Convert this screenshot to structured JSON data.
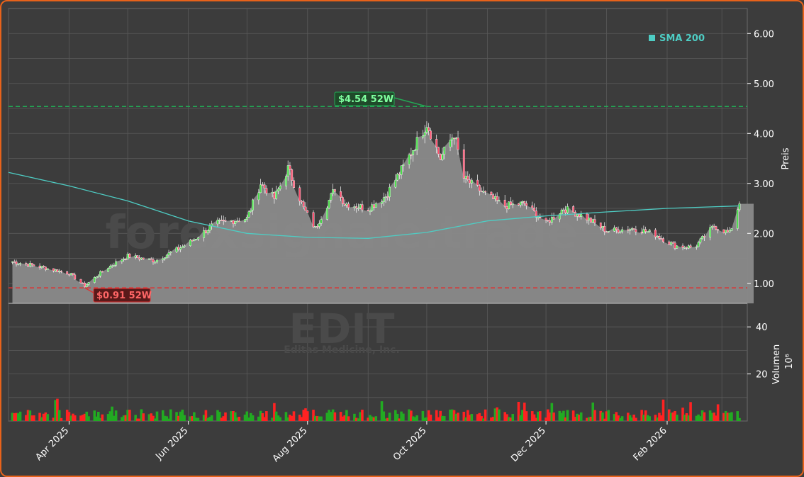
{
  "colors": {
    "background": "#3c3c3c",
    "border": "#e8621a",
    "grid": "#5a5a5a",
    "area": "#8a8a8a",
    "sma": "#4ecdc4",
    "up": "#22aa22",
    "down": "#ff2222",
    "high_line": "#22aa55",
    "low_line": "#dd3333"
  },
  "watermark": {
    "site": "forexsignale.trade",
    "ticker": "EDIT",
    "company": "Editas Medicine, Inc."
  },
  "legend": {
    "label": "SMA 200",
    "color": "#4ecdc4",
    "position": "top-right"
  },
  "annotations": {
    "high": {
      "label": "$4.54 52W",
      "value": 4.54,
      "date": "2025-10-01"
    },
    "low": {
      "label": "$0.91 52W",
      "value": 0.91,
      "date": "2025-04-09"
    }
  },
  "chart_data": [
    {
      "type": "line",
      "subtype": "candlestick-with-area",
      "ylabel": "Preis",
      "ylim": [
        0.6,
        6.5
      ],
      "y_ticks": [
        "1.00",
        "2.00",
        "3.00",
        "4.00",
        "5.00",
        "6.00"
      ],
      "x_ticks": [
        "Apr 2025",
        "Jun 2025",
        "Aug 2025",
        "Oct 2025",
        "Dec 2025",
        "Feb 2026"
      ],
      "grid": true,
      "price_series": {
        "name": "Close",
        "dates": [
          "2025-03-01",
          "2025-03-15",
          "2025-04-01",
          "2025-04-09",
          "2025-04-20",
          "2025-05-01",
          "2025-05-15",
          "2025-06-01",
          "2025-06-15",
          "2025-07-01",
          "2025-07-08",
          "2025-07-15",
          "2025-07-22",
          "2025-07-30",
          "2025-08-05",
          "2025-08-15",
          "2025-08-20",
          "2025-09-01",
          "2025-09-10",
          "2025-09-20",
          "2025-10-01",
          "2025-10-08",
          "2025-10-15",
          "2025-10-20",
          "2025-11-01",
          "2025-11-10",
          "2025-11-20",
          "2025-12-01",
          "2025-12-10",
          "2025-12-20",
          "2026-01-01",
          "2026-01-15",
          "2026-01-25",
          "2026-02-05",
          "2026-02-15",
          "2026-02-25",
          "2026-03-05",
          "2026-03-10"
        ],
        "values": [
          1.45,
          1.35,
          1.2,
          0.95,
          1.3,
          1.55,
          1.45,
          1.8,
          2.2,
          2.3,
          3.0,
          2.7,
          3.3,
          2.5,
          2.1,
          2.9,
          2.6,
          2.5,
          2.75,
          3.4,
          4.2,
          3.5,
          4.0,
          3.1,
          2.75,
          2.55,
          2.6,
          2.2,
          2.5,
          2.35,
          2.05,
          2.1,
          2.0,
          1.75,
          1.72,
          2.15,
          2.0,
          2.62
        ]
      },
      "sma_series": {
        "name": "SMA 200",
        "dates": [
          "2025-03-01",
          "2025-04-01",
          "2025-05-01",
          "2025-06-01",
          "2025-07-01",
          "2025-08-01",
          "2025-09-01",
          "2025-10-01",
          "2025-11-01",
          "2025-12-01",
          "2026-01-01",
          "2026-02-01",
          "2026-03-10"
        ],
        "values": [
          3.22,
          2.95,
          2.65,
          2.25,
          2.0,
          1.92,
          1.9,
          2.02,
          2.25,
          2.35,
          2.43,
          2.5,
          2.55
        ]
      },
      "hlines": [
        {
          "value": 4.54,
          "color": "#22aa55",
          "style": "dashed"
        },
        {
          "value": 0.91,
          "color": "#dd3333",
          "style": "dashed"
        }
      ]
    },
    {
      "type": "bar",
      "ylabel": "Volumen",
      "ylabel_unit": "10⁶",
      "ylim": [
        0,
        50
      ],
      "y_ticks": [
        "20",
        "40"
      ],
      "series_colors": {
        "up": "#22aa22",
        "down": "#ff2222"
      }
    }
  ]
}
